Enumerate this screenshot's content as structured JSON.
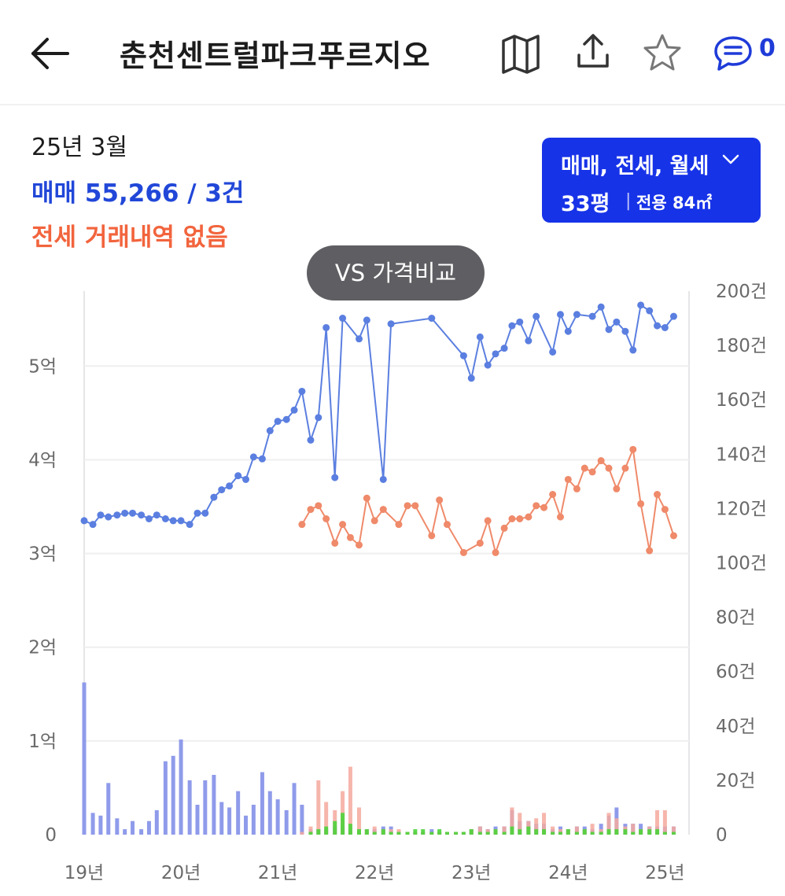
{
  "header": {
    "title": "춘천센트럴파크푸르지오",
    "back_icon": "arrow-left-icon",
    "map_icon": "map-icon",
    "share_icon": "share-icon",
    "favorite_icon": "star-icon",
    "comment_icon": "comment-icon",
    "comment_count": "0"
  },
  "summary": {
    "date": "25년 3월",
    "sale": "매매 55,266 / 3건",
    "jeonse": "전세 거래내역 없음"
  },
  "filter": {
    "types": "매매, 전세, 월세",
    "pyeong": "33평",
    "separator": "|",
    "area": "전용 84㎡"
  },
  "compare_button": "VS 가격비교",
  "colors": {
    "accent": "#1733e8",
    "sale_line": "#5b7fe0",
    "jeonse_line": "#ef8a6a",
    "sale_bar": "#8f9bea",
    "jeonse_bar": "#f4a99d",
    "monthly_bar": "#4cd33a"
  },
  "chart_data": {
    "type": "line",
    "x_axis": {
      "ticks": [
        "19년",
        "20년",
        "21년",
        "22년",
        "23년",
        "24년",
        "25년"
      ],
      "range": [
        2019.0,
        2025.2
      ]
    },
    "y_left": {
      "ticks": [
        "0",
        "1억",
        "2억",
        "3억",
        "4억",
        "5억"
      ],
      "unit": "억",
      "range": [
        0,
        5.8
      ]
    },
    "y_right": {
      "ticks": [
        "0",
        "20건",
        "40건",
        "60건",
        "80건",
        "100건",
        "120건",
        "140건",
        "160건",
        "180건",
        "200건"
      ],
      "unit": "건",
      "range": [
        0,
        200
      ]
    },
    "grid": true,
    "series": [
      {
        "name": "매매",
        "axis": "left",
        "points": [
          [
            2019.0,
            3.35
          ],
          [
            2019.09,
            3.31
          ],
          [
            2019.17,
            3.41
          ],
          [
            2019.25,
            3.39
          ],
          [
            2019.34,
            3.41
          ],
          [
            2019.42,
            3.43
          ],
          [
            2019.5,
            3.43
          ],
          [
            2019.59,
            3.41
          ],
          [
            2019.67,
            3.37
          ],
          [
            2019.75,
            3.41
          ],
          [
            2019.84,
            3.37
          ],
          [
            2019.92,
            3.35
          ],
          [
            2020.0,
            3.35
          ],
          [
            2020.09,
            3.31
          ],
          [
            2020.17,
            3.43
          ],
          [
            2020.25,
            3.43
          ],
          [
            2020.34,
            3.6
          ],
          [
            2020.42,
            3.68
          ],
          [
            2020.5,
            3.72
          ],
          [
            2020.59,
            3.83
          ],
          [
            2020.67,
            3.79
          ],
          [
            2020.75,
            4.03
          ],
          [
            2020.84,
            4.01
          ],
          [
            2020.92,
            4.31
          ],
          [
            2021.0,
            4.41
          ],
          [
            2021.09,
            4.43
          ],
          [
            2021.17,
            4.53
          ],
          [
            2021.25,
            4.73
          ],
          [
            2021.34,
            4.21
          ],
          [
            2021.42,
            4.45
          ],
          [
            2021.5,
            5.41
          ],
          [
            2021.59,
            3.81
          ],
          [
            2021.67,
            5.51
          ],
          [
            2021.84,
            5.29
          ],
          [
            2021.92,
            5.49
          ],
          [
            2022.09,
            3.79
          ],
          [
            2022.17,
            5.45
          ],
          [
            2022.59,
            5.51
          ],
          [
            2022.92,
            5.11
          ],
          [
            2023.0,
            4.87
          ],
          [
            2023.09,
            5.31
          ],
          [
            2023.17,
            5.01
          ],
          [
            2023.25,
            5.13
          ],
          [
            2023.34,
            5.19
          ],
          [
            2023.42,
            5.43
          ],
          [
            2023.5,
            5.47
          ],
          [
            2023.59,
            5.27
          ],
          [
            2023.67,
            5.53
          ],
          [
            2023.84,
            5.15
          ],
          [
            2023.92,
            5.55
          ],
          [
            2024.0,
            5.37
          ],
          [
            2024.09,
            5.55
          ],
          [
            2024.25,
            5.53
          ],
          [
            2024.34,
            5.63
          ],
          [
            2024.42,
            5.39
          ],
          [
            2024.5,
            5.47
          ],
          [
            2024.59,
            5.37
          ],
          [
            2024.67,
            5.17
          ],
          [
            2024.75,
            5.65
          ],
          [
            2024.84,
            5.59
          ],
          [
            2024.92,
            5.43
          ],
          [
            2025.0,
            5.41
          ],
          [
            2025.09,
            5.53
          ]
        ]
      },
      {
        "name": "전세",
        "axis": "left",
        "points": [
          [
            2021.25,
            3.31
          ],
          [
            2021.34,
            3.47
          ],
          [
            2021.42,
            3.51
          ],
          [
            2021.5,
            3.37
          ],
          [
            2021.59,
            3.11
          ],
          [
            2021.67,
            3.31
          ],
          [
            2021.75,
            3.17
          ],
          [
            2021.84,
            3.09
          ],
          [
            2021.92,
            3.59
          ],
          [
            2022.0,
            3.35
          ],
          [
            2022.09,
            3.47
          ],
          [
            2022.25,
            3.31
          ],
          [
            2022.34,
            3.51
          ],
          [
            2022.42,
            3.51
          ],
          [
            2022.59,
            3.19
          ],
          [
            2022.67,
            3.57
          ],
          [
            2022.75,
            3.31
          ],
          [
            2022.92,
            3.01
          ],
          [
            2023.09,
            3.11
          ],
          [
            2023.17,
            3.35
          ],
          [
            2023.25,
            3.01
          ],
          [
            2023.34,
            3.27
          ],
          [
            2023.42,
            3.37
          ],
          [
            2023.5,
            3.37
          ],
          [
            2023.59,
            3.39
          ],
          [
            2023.67,
            3.51
          ],
          [
            2023.75,
            3.49
          ],
          [
            2023.84,
            3.63
          ],
          [
            2023.92,
            3.39
          ],
          [
            2024.0,
            3.79
          ],
          [
            2024.09,
            3.69
          ],
          [
            2024.17,
            3.91
          ],
          [
            2024.25,
            3.87
          ],
          [
            2024.34,
            3.99
          ],
          [
            2024.42,
            3.91
          ],
          [
            2024.5,
            3.69
          ],
          [
            2024.59,
            3.91
          ],
          [
            2024.67,
            4.11
          ],
          [
            2024.75,
            3.53
          ],
          [
            2024.84,
            3.03
          ],
          [
            2024.92,
            3.63
          ],
          [
            2025.0,
            3.47
          ],
          [
            2025.09,
            3.19
          ]
        ]
      }
    ],
    "volume_bars": {
      "axis": "right",
      "sale": [
        [
          2019.0,
          56
        ],
        [
          2019.09,
          8
        ],
        [
          2019.17,
          7
        ],
        [
          2019.25,
          19
        ],
        [
          2019.34,
          6
        ],
        [
          2019.42,
          2
        ],
        [
          2019.5,
          5
        ],
        [
          2019.59,
          2
        ],
        [
          2019.67,
          5
        ],
        [
          2019.75,
          9
        ],
        [
          2019.84,
          27
        ],
        [
          2019.92,
          29
        ],
        [
          2020.0,
          35
        ],
        [
          2020.09,
          20
        ],
        [
          2020.17,
          11
        ],
        [
          2020.25,
          20
        ],
        [
          2020.34,
          22
        ],
        [
          2020.42,
          12
        ],
        [
          2020.5,
          10
        ],
        [
          2020.59,
          16
        ],
        [
          2020.67,
          7
        ],
        [
          2020.75,
          11
        ],
        [
          2020.84,
          23
        ],
        [
          2020.92,
          16
        ],
        [
          2021.0,
          13
        ],
        [
          2021.09,
          9
        ],
        [
          2021.17,
          19
        ],
        [
          2021.25,
          11
        ],
        [
          2021.34,
          2
        ],
        [
          2021.42,
          2
        ],
        [
          2021.5,
          2
        ],
        [
          2021.59,
          3
        ],
        [
          2021.67,
          3
        ],
        [
          2021.75,
          2
        ],
        [
          2021.84,
          2
        ],
        [
          2021.92,
          2
        ],
        [
          2022.0,
          2
        ],
        [
          2022.09,
          3
        ],
        [
          2022.17,
          3
        ],
        [
          2022.25,
          1
        ],
        [
          2022.42,
          1
        ],
        [
          2022.5,
          1
        ],
        [
          2022.59,
          2
        ],
        [
          2022.67,
          1
        ],
        [
          2022.75,
          1
        ],
        [
          2022.84,
          1
        ],
        [
          2022.92,
          1
        ],
        [
          2023.0,
          2
        ],
        [
          2023.09,
          3
        ],
        [
          2023.17,
          2
        ],
        [
          2023.25,
          3
        ],
        [
          2023.34,
          3
        ],
        [
          2023.42,
          9
        ],
        [
          2023.5,
          5
        ],
        [
          2023.59,
          5
        ],
        [
          2023.67,
          4
        ],
        [
          2023.75,
          4
        ],
        [
          2023.84,
          2
        ],
        [
          2023.92,
          3
        ],
        [
          2024.0,
          2
        ],
        [
          2024.09,
          3
        ],
        [
          2024.17,
          3
        ],
        [
          2024.25,
          2
        ],
        [
          2024.34,
          4
        ],
        [
          2024.42,
          7
        ],
        [
          2024.5,
          10
        ],
        [
          2024.59,
          4
        ],
        [
          2024.67,
          4
        ],
        [
          2024.75,
          4
        ],
        [
          2024.84,
          3
        ],
        [
          2024.92,
          3
        ],
        [
          2025.0,
          3
        ],
        [
          2025.09,
          3
        ]
      ],
      "jeonse": [
        [
          2021.25,
          1
        ],
        [
          2021.34,
          3
        ],
        [
          2021.42,
          20
        ],
        [
          2021.5,
          12
        ],
        [
          2021.59,
          9
        ],
        [
          2021.67,
          16
        ],
        [
          2021.75,
          25
        ],
        [
          2021.84,
          10
        ],
        [
          2021.92,
          2
        ],
        [
          2022.0,
          3
        ],
        [
          2022.09,
          2
        ],
        [
          2022.17,
          2
        ],
        [
          2022.25,
          2
        ],
        [
          2022.34,
          1
        ],
        [
          2022.42,
          1
        ],
        [
          2022.5,
          1
        ],
        [
          2022.59,
          1
        ],
        [
          2022.67,
          1
        ],
        [
          2022.75,
          1
        ],
        [
          2022.84,
          1
        ],
        [
          2022.92,
          1
        ],
        [
          2023.0,
          2
        ],
        [
          2023.09,
          3
        ],
        [
          2023.17,
          2
        ],
        [
          2023.25,
          2
        ],
        [
          2023.34,
          3
        ],
        [
          2023.42,
          10
        ],
        [
          2023.5,
          8
        ],
        [
          2023.59,
          5
        ],
        [
          2023.67,
          6
        ],
        [
          2023.75,
          8
        ],
        [
          2023.84,
          3
        ],
        [
          2023.92,
          2
        ],
        [
          2024.0,
          2
        ],
        [
          2024.09,
          3
        ],
        [
          2024.17,
          2
        ],
        [
          2024.25,
          4
        ],
        [
          2024.34,
          2
        ],
        [
          2024.42,
          8
        ],
        [
          2024.5,
          6
        ],
        [
          2024.59,
          3
        ],
        [
          2024.67,
          4
        ],
        [
          2024.75,
          2
        ],
        [
          2024.84,
          3
        ],
        [
          2024.92,
          9
        ],
        [
          2025.0,
          9
        ],
        [
          2025.09,
          3
        ]
      ],
      "monthly": [
        [
          2021.34,
          1
        ],
        [
          2021.42,
          2
        ],
        [
          2021.5,
          3
        ],
        [
          2021.59,
          5
        ],
        [
          2021.67,
          8
        ],
        [
          2021.75,
          4
        ],
        [
          2021.84,
          2
        ],
        [
          2021.92,
          2
        ],
        [
          2022.0,
          1
        ],
        [
          2022.09,
          2
        ],
        [
          2022.17,
          1
        ],
        [
          2022.25,
          1
        ],
        [
          2022.34,
          1
        ],
        [
          2022.42,
          2
        ],
        [
          2022.5,
          2
        ],
        [
          2022.59,
          1
        ],
        [
          2022.67,
          2
        ],
        [
          2022.75,
          1
        ],
        [
          2022.84,
          1
        ],
        [
          2022.92,
          1
        ],
        [
          2023.0,
          2
        ],
        [
          2023.09,
          1
        ],
        [
          2023.17,
          1
        ],
        [
          2023.25,
          2
        ],
        [
          2023.34,
          1
        ],
        [
          2023.42,
          3
        ],
        [
          2023.5,
          2
        ],
        [
          2023.59,
          3
        ],
        [
          2023.67,
          2
        ],
        [
          2023.75,
          2
        ],
        [
          2023.84,
          1
        ],
        [
          2023.92,
          1
        ],
        [
          2024.0,
          2
        ],
        [
          2024.09,
          1
        ],
        [
          2024.17,
          2
        ],
        [
          2024.25,
          1
        ],
        [
          2024.34,
          1
        ],
        [
          2024.42,
          2
        ],
        [
          2024.5,
          2
        ],
        [
          2024.59,
          2
        ],
        [
          2024.67,
          1
        ],
        [
          2024.75,
          2
        ],
        [
          2024.84,
          2
        ],
        [
          2024.92,
          2
        ],
        [
          2025.0,
          1
        ],
        [
          2025.09,
          1
        ]
      ]
    }
  }
}
